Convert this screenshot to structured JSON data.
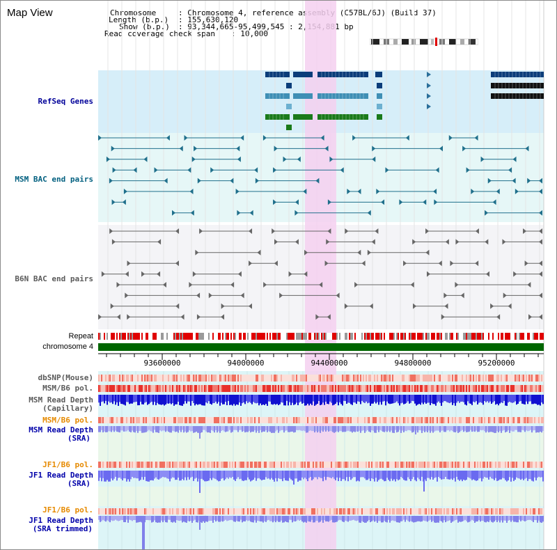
{
  "title": "Map View",
  "info": {
    "chromosome_label": "Chromosome",
    "chromosome_value": ": Chromosome 4, reference assembly (C57BL/6J) (Build 37)",
    "length_label": "Length (b.p.)",
    "length_value": ": 155,630,120",
    "show_label": "Show (b.p.)",
    "show_value": ": 93,344,665-95,499,545 : 2,154,881 bp",
    "coverage_label": "Read coverage check span",
    "coverage_value": ": 10,000"
  },
  "tracks": {
    "refseq": "RefSeq Genes",
    "msm_bac": "MSM BAC end pairs",
    "b6n_bac": "B6N BAC end pairs",
    "repeat": "Repeat",
    "chromosome": "chromosome 4",
    "dbsnp": "dbSNP(Mouse)",
    "msm_b6_pol_1": "MSM/B6 pol.",
    "msm_depth_cap_1": "MSM Read Depth",
    "msm_depth_cap_2": "(Capillary)",
    "msm_b6_pol_2": "MSM/B6 pol.",
    "msm_depth_sra_1": "MSM Read Depth",
    "msm_depth_sra_2": "(SRA)",
    "jf1_pol_1": "JF1/B6 pol.",
    "jf1_depth_sra_1": "JF1 Read Depth",
    "jf1_depth_sra_2": "(SRA)",
    "jf1_pol_2": "JF1/B6 pol.",
    "jf1_depth_trim_1": "JF1 Read Depth",
    "jf1_depth_trim_2": "(SRA trimmed)"
  },
  "axis": {
    "ticks": [
      "93600000",
      "94000000",
      "94400000",
      "94800000",
      "95200000"
    ]
  },
  "colors": {
    "refseq_label": "#000099",
    "msm_label": "#005f7f",
    "b6n_label": "#5a5a5a",
    "orange_label": "#e68a00",
    "blue_label": "#0000aa",
    "highlight": "#f5d0f0",
    "chromosome_bar": "#006600"
  }
}
